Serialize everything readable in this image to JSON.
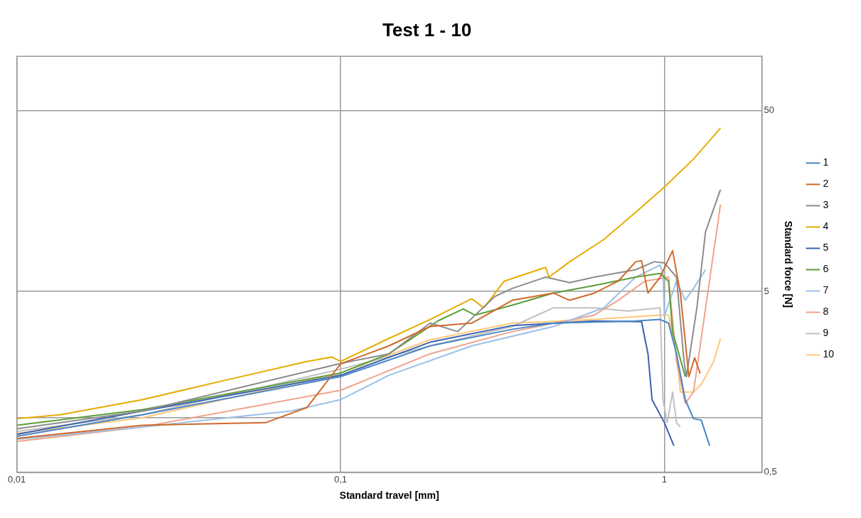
{
  "chart_data": {
    "type": "line",
    "title": "Test 1 - 10",
    "xlabel": "Standard travel [mm]",
    "ylabel": "Standard force [N]",
    "log": "xy",
    "grid": true,
    "legend": "right",
    "marker": "none",
    "line_style": "solid",
    "xlim": [
      0.01,
      2
    ],
    "xticks": [
      {
        "value": 0.01,
        "label": "0,01"
      },
      {
        "value": 0.1,
        "label": "0,1"
      },
      1
    ],
    "ylim": [
      0.5,
      100
    ],
    "yticks": [
      {
        "value": 0.5,
        "label": "0,5"
      },
      {
        "value": 1,
        "label": null
      },
      5,
      50
    ],
    "series": [
      {
        "name": "1",
        "color": "#4a86c5",
        "x": [
          0.01,
          0.0244,
          0.1,
          0.189,
          0.339,
          0.454,
          0.815,
          0.97,
          1.03,
          1.09,
          1.16,
          1.23,
          1.3,
          1.38
        ],
        "values": [
          0.79,
          1.04,
          1.69,
          2.5,
          3.09,
          3.34,
          3.43,
          3.5,
          3.34,
          2.26,
          1.26,
          0.99,
          0.97,
          0.7
        ]
      },
      {
        "name": "2",
        "color": "#d0692a",
        "x": [
          0.01,
          0.0244,
          0.0587,
          0.0787,
          0.1,
          0.141,
          0.189,
          0.254,
          0.339,
          0.454,
          0.51,
          0.608,
          0.72,
          0.815,
          0.85,
          0.89,
          0.97,
          1.06,
          1.12,
          1.19,
          1.24,
          1.29
        ],
        "values": [
          0.77,
          0.91,
          0.94,
          1.14,
          1.99,
          2.5,
          3.2,
          3.34,
          4.47,
          4.9,
          4.47,
          4.9,
          5.7,
          7.3,
          7.4,
          4.9,
          6.0,
          8.4,
          4.9,
          1.69,
          2.15,
          1.76
        ]
      },
      {
        "name": "3",
        "color": "#8c8c8c",
        "x": [
          0.01,
          0.0244,
          0.1,
          0.141,
          0.189,
          0.23,
          0.3,
          0.339,
          0.43,
          0.51,
          0.608,
          0.815,
          0.93,
          1.0,
          1.09,
          1.15,
          1.17,
          1.26,
          1.34,
          1.49
        ],
        "values": [
          0.87,
          1.09,
          2.0,
          2.26,
          3.34,
          3.0,
          4.7,
          5.2,
          6.0,
          5.6,
          6.0,
          6.6,
          7.3,
          7.2,
          6.0,
          2.05,
          1.69,
          4.06,
          10.7,
          18.3
        ]
      },
      {
        "name": "4",
        "color": "#e6ac00",
        "x": [
          0.01,
          0.0136,
          0.0244,
          0.0438,
          0.0787,
          0.0938,
          0.1,
          0.141,
          0.189,
          0.254,
          0.277,
          0.32,
          0.43,
          0.44,
          0.51,
          0.65,
          0.815,
          1.0,
          1.23,
          1.49
        ],
        "values": [
          0.99,
          1.04,
          1.26,
          1.61,
          2.05,
          2.17,
          2.05,
          2.75,
          3.5,
          4.56,
          4.06,
          5.7,
          6.8,
          6.0,
          7.3,
          9.7,
          13.7,
          18.9,
          27,
          40
        ]
      },
      {
        "name": "5",
        "color": "#3a62b0",
        "x": [
          0.01,
          0.0244,
          0.1,
          0.189,
          0.339,
          0.608,
          0.85,
          0.89,
          0.916,
          1.0,
          1.07
        ],
        "values": [
          0.81,
          1.09,
          1.72,
          2.62,
          3.24,
          3.43,
          3.4,
          2.26,
          1.26,
          0.94,
          0.7
        ]
      },
      {
        "name": "6",
        "color": "#5c9e3a",
        "x": [
          0.01,
          0.0244,
          0.1,
          0.141,
          0.2,
          0.239,
          0.26,
          0.339,
          0.454,
          0.608,
          0.815,
          0.97,
          1.03,
          1.06,
          1.16
        ],
        "values": [
          0.91,
          1.11,
          1.77,
          2.26,
          3.44,
          4.0,
          3.7,
          4.2,
          4.9,
          5.4,
          6.0,
          6.3,
          5.7,
          3.0,
          1.69
        ]
      },
      {
        "name": "7",
        "color": "#9dc0e8",
        "x": [
          0.01,
          0.0244,
          0.07,
          0.1,
          0.141,
          0.254,
          0.454,
          0.65,
          0.815,
          0.97,
          0.99,
          1.0,
          1.09,
          1.16,
          1.23,
          1.34
        ],
        "values": [
          0.76,
          0.89,
          1.09,
          1.26,
          1.72,
          2.5,
          3.2,
          4.06,
          6.0,
          7.0,
          6.3,
          3.65,
          5.7,
          4.47,
          5.2,
          6.6
        ]
      },
      {
        "name": "8",
        "color": "#f0a38a",
        "x": [
          0.01,
          0.0244,
          0.1,
          0.189,
          0.339,
          0.608,
          0.72,
          0.87,
          1.03,
          1.09,
          1.16,
          1.23,
          1.49
        ],
        "values": [
          0.74,
          0.89,
          1.42,
          2.26,
          3.0,
          3.7,
          4.47,
          5.7,
          6.0,
          2.05,
          1.2,
          1.39,
          15.1
        ]
      },
      {
        "name": "9",
        "color": "#c0c0c0",
        "x": [
          0.01,
          0.0244,
          0.1,
          0.189,
          0.339,
          0.454,
          0.608,
          0.77,
          0.97,
          0.99,
          1.02,
          1.06,
          1.09,
          1.12
        ],
        "values": [
          0.84,
          1.04,
          1.86,
          2.5,
          3.2,
          4.06,
          4.06,
          3.9,
          4.06,
          1.26,
          0.94,
          1.39,
          0.94,
          0.89
        ]
      },
      {
        "name": "10",
        "color": "#ffc87a",
        "x": [
          0.01,
          0.0244,
          0.1,
          0.189,
          0.339,
          0.608,
          0.97,
          1.03,
          1.09,
          1.12,
          1.23,
          1.3,
          1.42,
          1.49
        ],
        "values": [
          0.82,
          1.0,
          1.77,
          2.7,
          3.34,
          3.5,
          3.7,
          3.7,
          2.26,
          1.39,
          1.39,
          1.53,
          2.05,
          2.75
        ]
      }
    ]
  }
}
